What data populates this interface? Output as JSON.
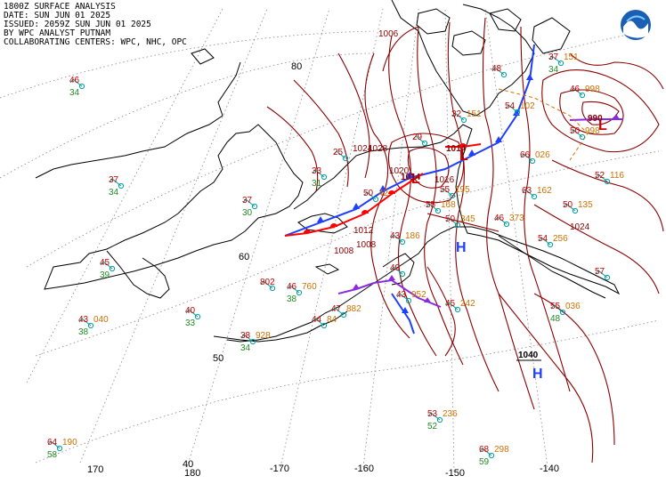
{
  "header": {
    "line1": "1800Z SURFACE ANALYSIS",
    "line2": "DATE: SUN JUN 01 2025",
    "line3": "ISSUED: 2059Z SUN JUN 01 2025",
    "line4": "BY WPC ANALYST PUTNAM",
    "line5": "COLLABORATING CENTERS: WPC, NHC, OPC"
  },
  "logo": {
    "name": "noaa-logo",
    "primary_color": "#1a5fb4",
    "accent_color": "#7fc7ff"
  },
  "colors": {
    "isobar": "#8b0000",
    "coast": "#000000",
    "grid": "#888888",
    "temperature": "#cc0000",
    "dewpoint": "#228b22",
    "pressure": "#d07000",
    "wind": "#00a0a0",
    "cold_front": "#1f3fff",
    "warm_front": "#ff0000",
    "occluded_front": "#8a2be2",
    "high_center": "#1f3fff",
    "low_center": "#cc0000"
  },
  "graticule_labels": {
    "lat": [
      "80",
      "60",
      "50",
      "40"
    ],
    "lon": [
      "170",
      "180",
      "-170",
      "-160",
      "-150",
      "-140"
    ]
  },
  "pressure_centers": [
    {
      "type": "L",
      "label": "L",
      "value": "990"
    },
    {
      "type": "L",
      "label": "L",
      "value": "1014"
    },
    {
      "type": "L",
      "label": "L",
      "value": "1014"
    },
    {
      "type": "H",
      "label": "H",
      "value": "1020"
    },
    {
      "type": "H",
      "label": "H",
      "value": "1040"
    }
  ],
  "isobar_labels": [
    "1006",
    "1008",
    "1012",
    "1016",
    "1020",
    "1024",
    "1028",
    "1024",
    "1008"
  ],
  "stations": [
    {
      "t": "46",
      "d": "34",
      "p": ""
    },
    {
      "t": "37",
      "d": "34",
      "p": ""
    },
    {
      "t": "45",
      "d": "39",
      "p": ""
    },
    {
      "t": "43",
      "d": "38",
      "p": "040"
    },
    {
      "t": "40",
      "d": "33",
      "p": ""
    },
    {
      "t": "38",
      "d": "34",
      "p": "928"
    },
    {
      "t": "64",
      "d": "58",
      "p": "190"
    },
    {
      "t": "37",
      "d": "30",
      "p": ""
    },
    {
      "t": "46",
      "d": "38",
      "p": "760"
    },
    {
      "t": "44",
      "d": "",
      "p": "84"
    },
    {
      "t": "47",
      "d": "",
      "p": "882"
    },
    {
      "t": "802",
      "d": "",
      "p": ""
    },
    {
      "t": "33",
      "d": "31",
      "p": ""
    },
    {
      "t": "25",
      "d": "",
      "p": ""
    },
    {
      "t": "53",
      "d": "52",
      "p": "236"
    },
    {
      "t": "68",
      "d": "59",
      "p": "298"
    },
    {
      "t": "55",
      "d": "48",
      "p": "036"
    },
    {
      "t": "57",
      "d": "",
      "p": ""
    },
    {
      "t": "52",
      "d": "",
      "p": "116"
    },
    {
      "t": "50",
      "d": "",
      "p": "135"
    },
    {
      "t": "54",
      "d": "",
      "p": "256"
    },
    {
      "t": "46",
      "d": "",
      "p": "373"
    },
    {
      "t": "50",
      "d": "",
      "p": "345"
    },
    {
      "t": "55",
      "d": "",
      "p": "195"
    },
    {
      "t": "63",
      "d": "",
      "p": "162"
    },
    {
      "t": "66",
      "d": "",
      "p": "026"
    },
    {
      "t": "50",
      "d": "",
      "p": "998"
    },
    {
      "t": "46",
      "d": "",
      "p": "998"
    },
    {
      "t": "37",
      "d": "34",
      "p": "151"
    },
    {
      "t": "54",
      "d": "",
      "p": "102"
    },
    {
      "t": "48",
      "d": "",
      "p": ""
    },
    {
      "t": "32",
      "d": "",
      "p": "151"
    },
    {
      "t": "29",
      "d": "",
      "p": ""
    },
    {
      "t": "50",
      "d": "",
      "p": "42"
    },
    {
      "t": "43",
      "d": "",
      "p": "186"
    },
    {
      "t": "49",
      "d": "",
      "p": ""
    },
    {
      "t": "55",
      "d": "",
      "p": "168"
    },
    {
      "t": "45",
      "d": "",
      "p": "242"
    },
    {
      "t": "43",
      "d": "",
      "p": "952"
    }
  ]
}
